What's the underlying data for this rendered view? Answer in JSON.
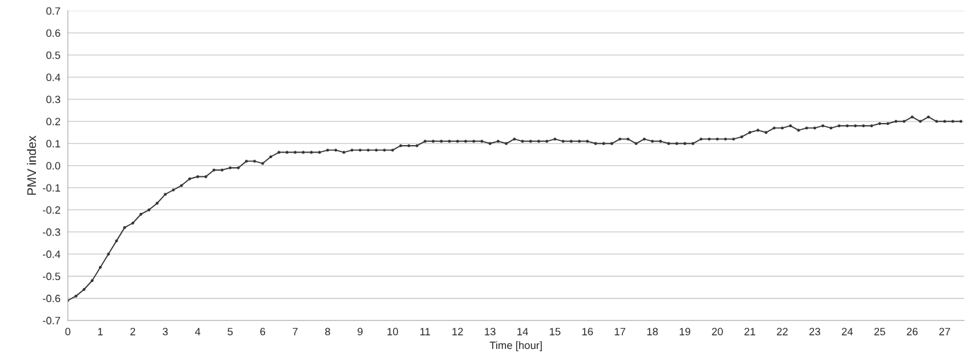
{
  "chart_data": {
    "type": "line",
    "xlabel": "Time [hour]",
    "ylabel": "PMV index",
    "x": [
      0,
      0.25,
      0.5,
      0.75,
      1,
      1.25,
      1.5,
      1.75,
      2,
      2.25,
      2.5,
      2.75,
      3,
      3.25,
      3.5,
      3.75,
      4,
      4.25,
      4.5,
      4.75,
      5,
      5.25,
      5.5,
      5.75,
      6,
      6.25,
      6.5,
      6.75,
      7,
      7.25,
      7.5,
      7.75,
      8,
      8.25,
      8.5,
      8.75,
      9,
      9.25,
      9.5,
      9.75,
      10,
      10.25,
      10.5,
      10.75,
      11,
      11.25,
      11.5,
      11.75,
      12,
      12.25,
      12.5,
      12.75,
      13,
      13.25,
      13.5,
      13.75,
      14,
      14.25,
      14.5,
      14.75,
      15,
      15.25,
      15.5,
      15.75,
      16,
      16.25,
      16.5,
      16.75,
      17,
      17.25,
      17.5,
      17.75,
      18,
      18.25,
      18.5,
      18.75,
      19,
      19.25,
      19.5,
      19.75,
      20,
      20.25,
      20.5,
      20.75,
      21,
      21.25,
      21.5,
      21.75,
      22,
      22.25,
      22.5,
      22.75,
      23,
      23.25,
      23.5,
      23.75,
      24,
      24.25,
      24.5,
      24.75,
      25,
      25.25,
      25.5,
      25.75,
      26,
      26.25,
      26.5,
      26.75,
      27,
      27.25,
      27.5
    ],
    "series": [
      {
        "color": "#333333",
        "values": [
          -0.61,
          -0.59,
          -0.56,
          -0.52,
          -0.46,
          -0.4,
          -0.34,
          -0.28,
          -0.26,
          -0.22,
          -0.2,
          -0.17,
          -0.13,
          -0.11,
          -0.09,
          -0.06,
          -0.05,
          -0.05,
          -0.02,
          -0.02,
          -0.01,
          -0.01,
          0.02,
          0.02,
          0.01,
          0.04,
          0.06,
          0.06,
          0.06,
          0.06,
          0.06,
          0.06,
          0.07,
          0.07,
          0.06,
          0.07,
          0.07,
          0.07,
          0.07,
          0.07,
          0.07,
          0.09,
          0.09,
          0.09,
          0.11,
          0.11,
          0.11,
          0.11,
          0.11,
          0.11,
          0.11,
          0.11,
          0.1,
          0.11,
          0.1,
          0.12,
          0.11,
          0.11,
          0.11,
          0.11,
          0.12,
          0.11,
          0.11,
          0.11,
          0.11,
          0.1,
          0.1,
          0.1,
          0.12,
          0.12,
          0.1,
          0.12,
          0.11,
          0.11,
          0.1,
          0.1,
          0.1,
          0.1,
          0.12,
          0.12,
          0.12,
          0.12,
          0.12,
          0.13,
          0.15,
          0.16,
          0.15,
          0.17,
          0.17,
          0.18,
          0.16,
          0.17,
          0.17,
          0.18,
          0.17,
          0.18,
          0.18,
          0.18,
          0.18,
          0.18,
          0.19,
          0.19,
          0.2,
          0.2,
          0.22,
          0.2,
          0.22,
          0.2,
          0.2,
          0.2,
          0.2
        ]
      }
    ],
    "xlim": [
      0,
      27.6
    ],
    "xticks": [
      0,
      1,
      2,
      3,
      4,
      5,
      6,
      7,
      8,
      9,
      10,
      11,
      12,
      13,
      14,
      15,
      16,
      17,
      18,
      19,
      20,
      21,
      22,
      23,
      24,
      25,
      26,
      27
    ],
    "ylim": [
      -0.7,
      0.7
    ],
    "yticks": [
      {
        "value": -0.7,
        "label": "-0.7"
      },
      {
        "value": -0.6,
        "label": "-0.6"
      },
      {
        "value": -0.5,
        "label": "-0.5"
      },
      {
        "value": -0.4,
        "label": "-0.4"
      },
      {
        "value": -0.3,
        "label": "-0.3"
      },
      {
        "value": -0.2,
        "label": "-0.2"
      },
      {
        "value": -0.1,
        "label": "-0.1"
      },
      {
        "value": 0,
        "label": "0.0"
      },
      {
        "value": 0.1,
        "label": "0.1"
      },
      {
        "value": 0.2,
        "label": "0.2"
      },
      {
        "value": 0.3,
        "label": "0.3"
      },
      {
        "value": 0.4,
        "label": "0.4"
      },
      {
        "value": 0.5,
        "label": "0.5"
      },
      {
        "value": 0.6,
        "label": "0.6"
      },
      {
        "value": 0.7,
        "label": "0.7"
      }
    ],
    "grid": "y",
    "marker": "circle",
    "line_style": "solid"
  }
}
